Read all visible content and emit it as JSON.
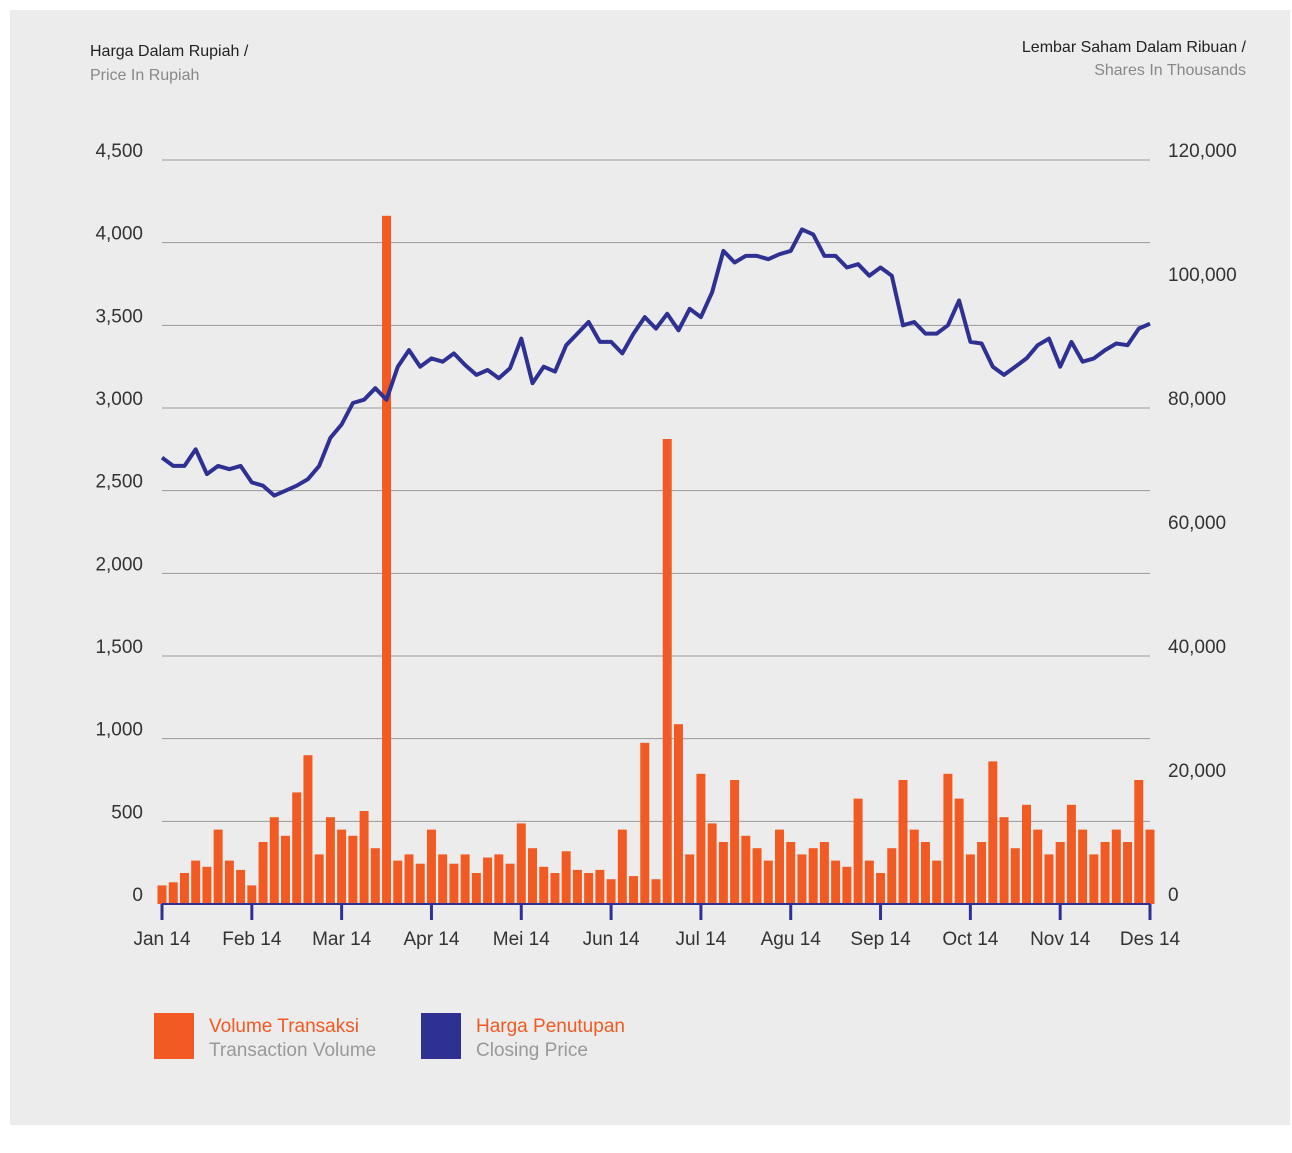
{
  "chart_data": {
    "type": "bar-line",
    "left_axis_label": "Harga Dalam Rupiah /",
    "left_axis_label_en": "Price In Rupiah",
    "right_axis_label": "Lembar Saham Dalam Ribuan /",
    "right_axis_label_en": "Shares In Thousands",
    "x": [
      0,
      0.125,
      0.25,
      0.375,
      0.5,
      0.625,
      0.75,
      0.875,
      1,
      1.125,
      1.25,
      1.375,
      1.5,
      1.625,
      1.75,
      1.875,
      2,
      2.125,
      2.25,
      2.375,
      2.5,
      2.625,
      2.75,
      2.875,
      3,
      3.125,
      3.25,
      3.375,
      3.5,
      3.625,
      3.75,
      3.875,
      4,
      4.125,
      4.25,
      4.375,
      4.5,
      4.625,
      4.75,
      4.875,
      5,
      5.125,
      5.25,
      5.375,
      5.5,
      5.625,
      5.75,
      5.875,
      6,
      6.125,
      6.25,
      6.375,
      6.5,
      6.625,
      6.75,
      6.875,
      7,
      7.125,
      7.25,
      7.375,
      7.5,
      7.625,
      7.75,
      7.875,
      8,
      8.125,
      8.25,
      8.375,
      8.5,
      8.625,
      8.75,
      8.875,
      9,
      9.125,
      9.25,
      9.375,
      9.5,
      9.625,
      9.75,
      9.875,
      10,
      10.125,
      10.25,
      10.375,
      10.5,
      10.625,
      10.75,
      10.875,
      11
    ],
    "xlim": [
      0,
      11
    ],
    "xticks": [
      {
        "value": 0,
        "label": "Jan 14"
      },
      {
        "value": 1,
        "label": "Feb 14"
      },
      {
        "value": 2,
        "label": "Mar 14"
      },
      {
        "value": 3,
        "label": "Apr 14"
      },
      {
        "value": 4,
        "label": "Mei 14"
      },
      {
        "value": 5,
        "label": "Jun 14"
      },
      {
        "value": 6,
        "label": "Jul 14"
      },
      {
        "value": 7,
        "label": "Agu 14"
      },
      {
        "value": 8,
        "label": "Sep 14"
      },
      {
        "value": 9,
        "label": "Oct 14"
      },
      {
        "value": 10,
        "label": "Nov 14"
      },
      {
        "value": 11,
        "label": "Des 14"
      }
    ],
    "ylim": [
      0,
      4500
    ],
    "yticks": [
      0,
      500,
      {
        "value": 1000,
        "label": "1,000"
      },
      {
        "value": 1500,
        "label": "1,500"
      },
      {
        "value": 2000,
        "label": "2,000"
      },
      {
        "value": 2500,
        "label": "2,500"
      },
      {
        "value": 3000,
        "label": "3,000"
      },
      {
        "value": 3500,
        "label": "3,500"
      },
      {
        "value": 4000,
        "label": "4,000"
      },
      {
        "value": 4500,
        "label": "4,500"
      }
    ],
    "y2lim": [
      0,
      120000
    ],
    "y2ticks": [
      0,
      {
        "value": 20000,
        "label": "20,000"
      },
      {
        "value": 40000,
        "label": "40,000"
      },
      {
        "value": 60000,
        "label": "60,000"
      },
      {
        "value": 80000,
        "label": "80,000"
      },
      {
        "value": 100000,
        "label": "100,000"
      },
      {
        "value": 120000,
        "label": "120,000"
      }
    ],
    "grid": true,
    "series": [
      {
        "name": "Volume Transaksi",
        "name_en": "Transaction Volume",
        "kind": "bar",
        "axis": "y2",
        "color": "#f15a22",
        "values": [
          3000,
          3500,
          5000,
          7000,
          6000,
          12000,
          7000,
          5500,
          3000,
          10000,
          14000,
          11000,
          18000,
          24000,
          8000,
          14000,
          12000,
          11000,
          15000,
          9000,
          111000,
          7000,
          8000,
          6500,
          12000,
          8000,
          6500,
          8000,
          5000,
          7500,
          8000,
          6500,
          13000,
          9000,
          6000,
          5000,
          8500,
          5500,
          5000,
          5500,
          4000,
          12000,
          4500,
          26000,
          4000,
          75000,
          29000,
          8000,
          21000,
          13000,
          10000,
          20000,
          11000,
          9000,
          7000,
          12000,
          10000,
          8000,
          9000,
          10000,
          7000,
          6000,
          17000,
          7000,
          5000,
          9000,
          20000,
          12000,
          10000,
          7000,
          21000,
          17000,
          8000,
          10000,
          23000,
          14000,
          9000,
          16000,
          12000,
          8000,
          10000,
          16000,
          12000,
          8000,
          10000,
          12000,
          10000,
          20000,
          12000
        ]
      },
      {
        "name": "Harga Penutupan",
        "name_en": "Closing Price",
        "kind": "line",
        "axis": "y",
        "color": "#2e3192",
        "values": [
          2700,
          2650,
          2650,
          2750,
          2600,
          2650,
          2630,
          2650,
          2550,
          2530,
          2470,
          2500,
          2530,
          2570,
          2650,
          2820,
          2900,
          3030,
          3050,
          3120,
          3050,
          3250,
          3350,
          3250,
          3300,
          3280,
          3330,
          3260,
          3200,
          3230,
          3180,
          3240,
          3420,
          3150,
          3250,
          3220,
          3380,
          3450,
          3520,
          3400,
          3400,
          3330,
          3450,
          3550,
          3480,
          3570,
          3470,
          3600,
          3550,
          3700,
          3950,
          3880,
          3920,
          3920,
          3900,
          3930,
          3950,
          4080,
          4050,
          3920,
          3920,
          3850,
          3870,
          3800,
          3850,
          3800,
          3500,
          3520,
          3450,
          3450,
          3500,
          3650,
          3400,
          3390,
          3250,
          3200,
          3250,
          3300,
          3380,
          3420,
          3250,
          3400,
          3280,
          3300,
          3350,
          3390,
          3380,
          3480,
          3510
        ]
      }
    ]
  }
}
